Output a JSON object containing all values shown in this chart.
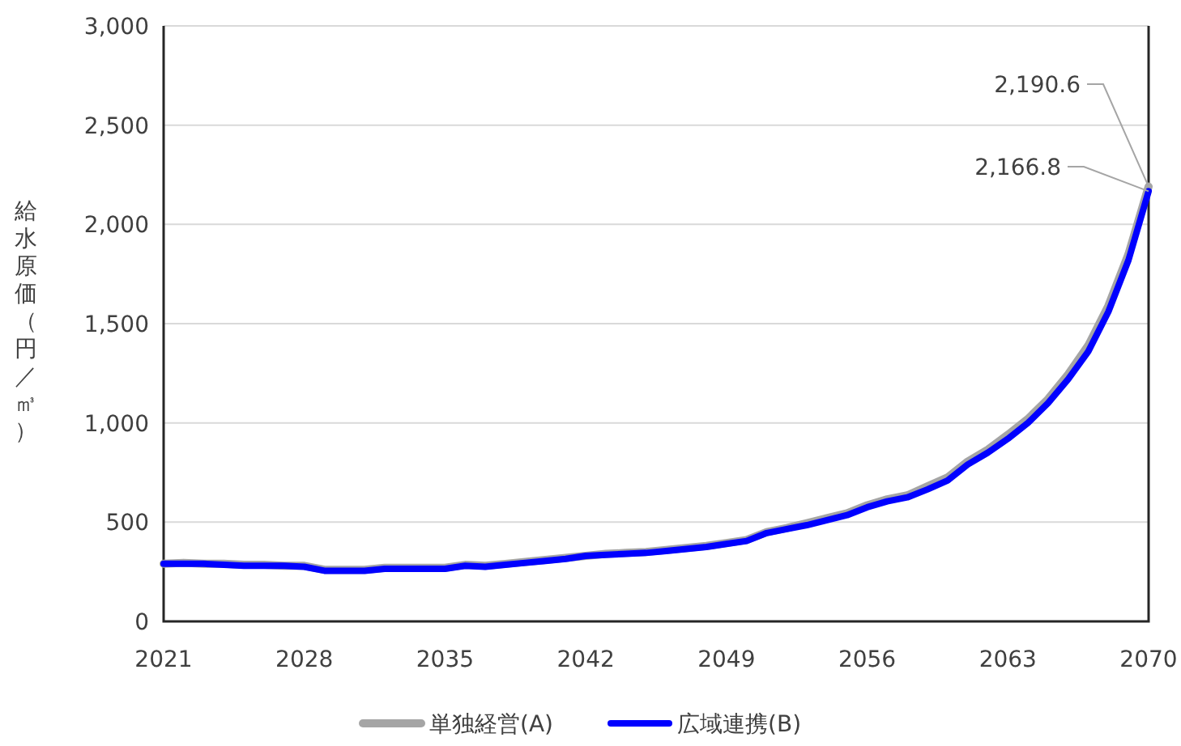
{
  "chart_data": {
    "type": "line",
    "ylabel": "給水原価（円／㎥）",
    "x": [
      2021,
      2022,
      2023,
      2024,
      2025,
      2026,
      2027,
      2028,
      2029,
      2030,
      2031,
      2032,
      2033,
      2034,
      2035,
      2036,
      2037,
      2038,
      2039,
      2040,
      2041,
      2042,
      2043,
      2044,
      2045,
      2046,
      2047,
      2048,
      2049,
      2050,
      2051,
      2052,
      2053,
      2054,
      2055,
      2056,
      2057,
      2058,
      2059,
      2060,
      2061,
      2062,
      2063,
      2064,
      2065,
      2066,
      2067,
      2068,
      2069,
      2070
    ],
    "series": [
      {
        "name": "単独経営(A)",
        "color": "#a5a5a5",
        "values": [
          290,
          295,
          290,
          290,
          285,
          285,
          280,
          280,
          260,
          260,
          260,
          270,
          270,
          270,
          270,
          285,
          280,
          290,
          300,
          310,
          320,
          330,
          340,
          345,
          350,
          360,
          370,
          380,
          395,
          410,
          450,
          470,
          495,
          520,
          545,
          585,
          615,
          635,
          680,
          725,
          805,
          865,
          940,
          1020,
          1120,
          1245,
          1390,
          1590,
          1850,
          2190.6
        ]
      },
      {
        "name": "広域連携(B)",
        "color": "#0000ff",
        "values": [
          290,
          290,
          290,
          285,
          280,
          280,
          280,
          275,
          255,
          255,
          255,
          265,
          265,
          265,
          265,
          280,
          275,
          285,
          295,
          305,
          315,
          330,
          335,
          340,
          345,
          355,
          365,
          375,
          390,
          405,
          445,
          465,
          485,
          510,
          535,
          575,
          605,
          625,
          665,
          710,
          790,
          850,
          920,
          1000,
          1100,
          1220,
          1360,
          1560,
          1820,
          2166.8
        ]
      }
    ],
    "xlim": [
      2021,
      2070
    ],
    "xticks": [
      2021,
      2028,
      2035,
      2042,
      2049,
      2056,
      2063,
      2070
    ],
    "ylim": [
      0,
      3000
    ],
    "yticks": [
      0,
      {
        "value": 500,
        "label": "500"
      },
      {
        "value": 1000,
        "label": "1,000"
      },
      {
        "value": 1500,
        "label": "1,500"
      },
      {
        "value": 2000,
        "label": "2,000"
      },
      {
        "value": 2500,
        "label": "2,500"
      },
      {
        "value": 3000,
        "label": "3,000"
      }
    ],
    "annotations": [
      {
        "text": "2,190.6",
        "x": 2070,
        "y": 2190.6
      },
      {
        "text": "2,166.8",
        "x": 2070,
        "y": 2166.8
      }
    ],
    "grid": "y",
    "legend": "bottom",
    "marker": "none",
    "line_style": "solid"
  }
}
